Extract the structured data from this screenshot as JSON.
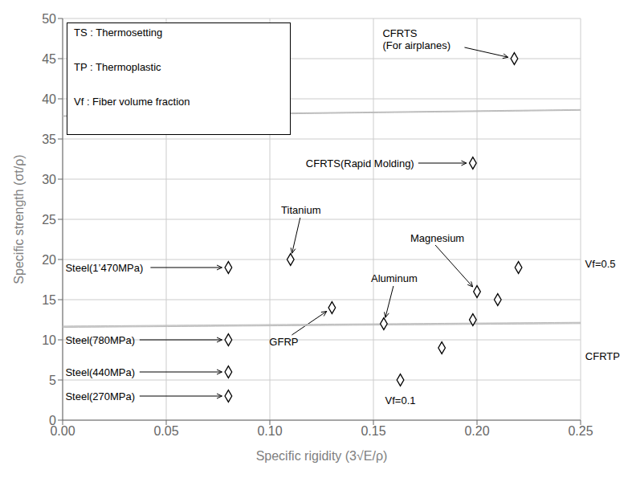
{
  "chart_data": {
    "type": "scatter",
    "xlabel": "Specific rigidity (3√E/ρ)",
    "ylabel": "Specific strength (σt/ρ)",
    "xlim": [
      0.0,
      0.25
    ],
    "ylim": [
      0,
      50
    ],
    "xticks": [
      {
        "value": 0,
        "label": "0.00"
      },
      0.05,
      {
        "value": 0.1,
        "label": "0.10"
      },
      0.15,
      {
        "value": 0.2,
        "label": "0.20"
      },
      0.25
    ],
    "yticks": [
      0,
      5,
      10,
      15,
      20,
      25,
      30,
      35,
      40,
      45,
      50
    ],
    "grid": true,
    "series": [
      {
        "marker": "diamond",
        "color": "#000000",
        "values": [
          {
            "x": 0.08,
            "y": 19
          },
          {
            "x": 0.08,
            "y": 10
          },
          {
            "x": 0.08,
            "y": 6
          },
          {
            "x": 0.08,
            "y": 3
          },
          {
            "x": 0.11,
            "y": 20
          },
          {
            "x": 0.13,
            "y": 14
          },
          {
            "x": 0.155,
            "y": 12
          },
          {
            "x": 0.2,
            "y": 16
          }
        ]
      },
      {
        "marker": "diamond",
        "color": "#000000",
        "values": [
          {
            "x": 0.163,
            "y": 5
          },
          {
            "x": 0.183,
            "y": 9
          },
          {
            "x": 0.198,
            "y": 12.5
          },
          {
            "x": 0.21,
            "y": 15
          },
          {
            "x": 0.22,
            "y": 19
          }
        ]
      },
      {
        "marker": "diamond",
        "color": "#000000",
        "values": [
          {
            "x": 0.218,
            "y": 45
          },
          {
            "x": 0.198,
            "y": 32
          }
        ]
      }
    ],
    "regions": [
      {
        "cx": 0.212,
        "cy": 38.5,
        "width": 0.03,
        "height": 16,
        "angle": -18,
        "color": "#bbbbbb"
      },
      {
        "cx": 0.197,
        "cy": 12.0,
        "width": 0.074,
        "height": 9,
        "angle": -28,
        "color": "#bbbbbb"
      }
    ],
    "annotations": [
      {
        "text": "Steel(1’470MPa)",
        "x": 0.08,
        "y": 19
      },
      {
        "text": "Steel(780MPa)",
        "x": 0.08,
        "y": 10
      },
      {
        "text": "Steel(440MPa)",
        "x": 0.08,
        "y": 6
      },
      {
        "text": "Steel(270MPa)",
        "x": 0.08,
        "y": 3
      },
      {
        "text": "Titanium",
        "x": 0.11,
        "y": 20
      },
      {
        "text": "GFRP",
        "x": 0.13,
        "y": 14
      },
      {
        "text": "Aluminum",
        "x": 0.155,
        "y": 12
      },
      {
        "text": "Magnesium",
        "x": 0.2,
        "y": 16
      },
      {
        "text": "CFRTS\n(For airplanes)",
        "x": 0.218,
        "y": 45
      },
      {
        "text": "CFRTS(Rapid Molding)",
        "x": 0.198,
        "y": 32
      },
      {
        "text": "Vf=0.1",
        "x": 0.163,
        "y": 5
      },
      {
        "text": "Vf=0.5",
        "x": 0.22,
        "y": 19
      },
      {
        "text": "CFRTP",
        "x": 0.198,
        "y": 12.5
      }
    ],
    "text_box": [
      "TS : Thermosetting",
      "TP : Thermoplastic",
      "Vf : Fiber volume fraction"
    ]
  }
}
